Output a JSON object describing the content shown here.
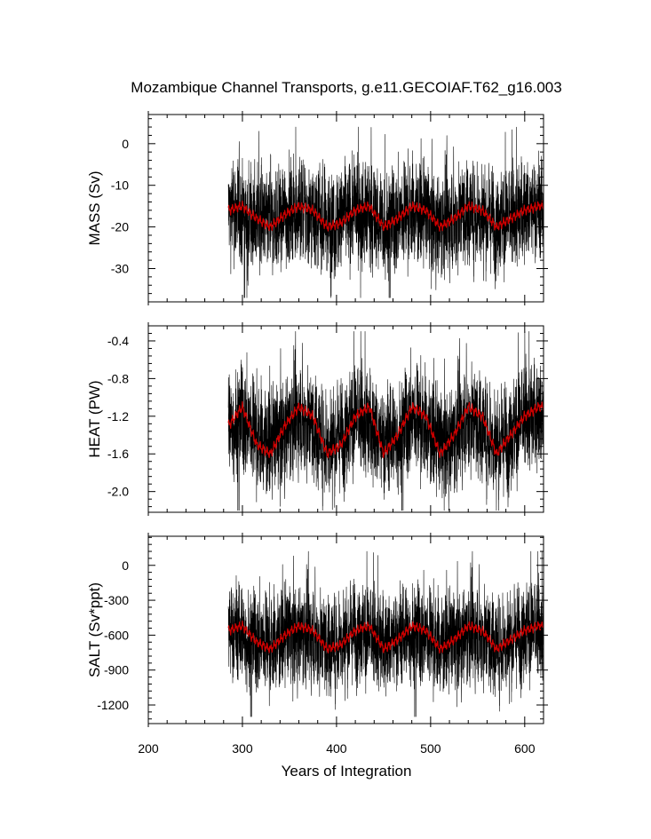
{
  "title": "Mozambique Channel Transports, g.e11.GECOIAF.T62_g16.003",
  "xlabel": "Years of Integration",
  "colors": {
    "raw_series": "#000000",
    "smoothed_series": "#cc0000",
    "axes": "#000000",
    "background": "#ffffff"
  },
  "chart_data": [
    {
      "type": "line",
      "panel": "top",
      "ylabel": "MASS (Sv)",
      "xlim": [
        200,
        620
      ],
      "ylim": [
        -38,
        7
      ],
      "xticks": [
        200,
        300,
        400,
        500,
        600
      ],
      "yticks": [
        0,
        -10,
        -20,
        -30
      ],
      "ytick_labels": [
        "0",
        "-10",
        "-20",
        "-30"
      ],
      "show_xtick_labels": false,
      "data_start_x": 285,
      "data_end_x": 620,
      "series": [
        {
          "style": "raw-monthly",
          "mean": -17.5,
          "spread": [
            -37,
            4
          ],
          "x": [
            285,
            300,
            315,
            330,
            345,
            360,
            375,
            390,
            405,
            420,
            435,
            450,
            465,
            480,
            495,
            510,
            525,
            540,
            555,
            570,
            585,
            600,
            615
          ],
          "values": [
            -16,
            -17,
            -18,
            -19,
            -17,
            -16,
            -17,
            -19,
            -18,
            -16,
            -17,
            -19,
            -18,
            -16,
            -17,
            -19,
            -18,
            -16,
            -17,
            -19,
            -18,
            -16,
            -16
          ]
        },
        {
          "style": "smoothed",
          "x": [
            285,
            300,
            315,
            330,
            345,
            360,
            375,
            390,
            405,
            420,
            435,
            450,
            465,
            480,
            495,
            510,
            525,
            540,
            555,
            570,
            585,
            600,
            615
          ],
          "values": [
            -16,
            -15,
            -18,
            -20,
            -17,
            -15,
            -16,
            -20,
            -19,
            -16,
            -15,
            -20,
            -18,
            -15,
            -16,
            -20,
            -18,
            -15,
            -16,
            -20,
            -18,
            -16,
            -15
          ]
        }
      ]
    },
    {
      "type": "line",
      "panel": "middle",
      "ylabel": "HEAT (PW)",
      "xlim": [
        200,
        620
      ],
      "ylim": [
        -2.22,
        -0.24
      ],
      "xticks": [
        200,
        300,
        400,
        500,
        600
      ],
      "yticks": [
        -0.4,
        -0.8,
        -1.2,
        -1.6,
        -2.0
      ],
      "ytick_labels": [
        "-0.4",
        "-0.8",
        "-1.2",
        "-1.6",
        "-2.0"
      ],
      "show_xtick_labels": false,
      "data_start_x": 285,
      "data_end_x": 620,
      "series": [
        {
          "style": "raw-monthly",
          "mean": -1.33,
          "spread": [
            -2.2,
            -0.3
          ],
          "x": [
            285,
            300,
            315,
            330,
            345,
            360,
            375,
            390,
            405,
            420,
            435,
            450,
            465,
            480,
            495,
            510,
            525,
            540,
            555,
            570,
            585,
            600,
            615
          ],
          "values": [
            -1.3,
            -1.2,
            -1.4,
            -1.5,
            -1.3,
            -1.2,
            -1.3,
            -1.5,
            -1.4,
            -1.2,
            -1.3,
            -1.5,
            -1.4,
            -1.2,
            -1.3,
            -1.5,
            -1.4,
            -1.2,
            -1.3,
            -1.5,
            -1.4,
            -1.2,
            -1.2
          ]
        },
        {
          "style": "smoothed",
          "x": [
            285,
            300,
            315,
            330,
            345,
            360,
            375,
            390,
            405,
            420,
            435,
            450,
            465,
            480,
            495,
            510,
            525,
            540,
            555,
            570,
            585,
            600,
            615
          ],
          "values": [
            -1.3,
            -1.1,
            -1.5,
            -1.6,
            -1.3,
            -1.1,
            -1.2,
            -1.6,
            -1.5,
            -1.2,
            -1.1,
            -1.6,
            -1.4,
            -1.1,
            -1.2,
            -1.6,
            -1.4,
            -1.1,
            -1.2,
            -1.6,
            -1.4,
            -1.2,
            -1.1
          ]
        }
      ]
    },
    {
      "type": "line",
      "panel": "bottom",
      "ylabel": "SALT (Sv*ppt)",
      "xlim": [
        200,
        620
      ],
      "ylim": [
        -1360,
        250
      ],
      "xticks": [
        200,
        300,
        400,
        500,
        600
      ],
      "yticks": [
        0,
        -300,
        -600,
        -900,
        -1200
      ],
      "ytick_labels": [
        "0",
        "-300",
        "-600",
        "-900",
        "-1200"
      ],
      "xtick_labels": [
        "200",
        "300",
        "400",
        "500",
        "600"
      ],
      "show_xtick_labels": true,
      "data_start_x": 285,
      "data_end_x": 620,
      "series": [
        {
          "style": "raw-monthly",
          "mean": -620,
          "spread": [
            -1300,
            120
          ],
          "x": [
            285,
            300,
            315,
            330,
            345,
            360,
            375,
            390,
            405,
            420,
            435,
            450,
            465,
            480,
            495,
            510,
            525,
            540,
            555,
            570,
            585,
            600,
            615
          ],
          "values": [
            -560,
            -600,
            -640,
            -680,
            -600,
            -560,
            -600,
            -680,
            -640,
            -560,
            -600,
            -680,
            -640,
            -560,
            -600,
            -680,
            -640,
            -560,
            -600,
            -680,
            -640,
            -560,
            -560
          ]
        },
        {
          "style": "smoothed",
          "x": [
            285,
            300,
            315,
            330,
            345,
            360,
            375,
            390,
            405,
            420,
            435,
            450,
            465,
            480,
            495,
            510,
            525,
            540,
            555,
            570,
            585,
            600,
            615
          ],
          "values": [
            -560,
            -520,
            -660,
            -720,
            -600,
            -520,
            -560,
            -720,
            -680,
            -560,
            -520,
            -720,
            -640,
            -520,
            -560,
            -720,
            -640,
            -520,
            -560,
            -720,
            -640,
            -560,
            -520
          ]
        }
      ]
    }
  ]
}
